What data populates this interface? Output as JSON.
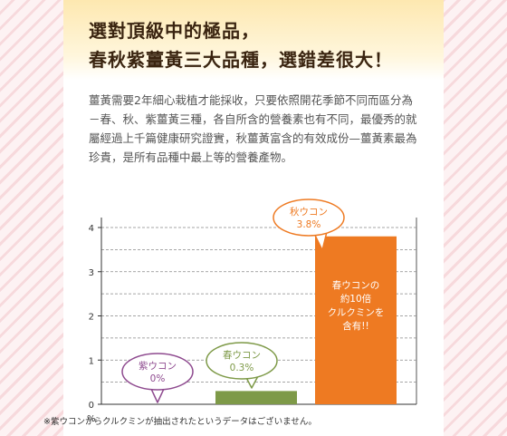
{
  "header": {
    "title_line1": "選對頂級中的極品，",
    "title_line2": "春秋紫薑黃三大品種，選錯差很大！"
  },
  "description": "薑黃需要2年細心栽植才能採收，只要依照開花季節不同而區分為－春、秋、紫薑黃三種，各自所含的營養素也有不同，最優秀的就屬經過上千篇健康研究證實，秋薑黃富含的有效成份—薑黃素最為珍貴，是所有品種中最上等的營養產物。",
  "chart_data": {
    "type": "bar",
    "categories": [
      "紫ウコン",
      "春ウコン",
      "秋ウコン"
    ],
    "values": [
      0,
      0.3,
      3.8
    ],
    "value_labels": [
      "0%",
      "0.3%",
      "3.8%"
    ],
    "ylim": [
      0,
      4
    ],
    "yticks": [
      "0",
      "1",
      "2",
      "3",
      "4"
    ],
    "y_unit": "%",
    "grid": true,
    "bar_colors": [
      "#8e4a8f",
      "#7e9a48",
      "#ee7a22"
    ],
    "bar_annotation": "春ウコンの\n約10倍\nクルクミンを\n含有!!",
    "footnote": "※紫ウコンからクルクミンが抽出されたというデータはございません。"
  },
  "colors": {
    "stripe_light": "#fdf2f3",
    "stripe_dark": "#f7d9dc",
    "title": "#3a2410",
    "text": "#555555"
  }
}
